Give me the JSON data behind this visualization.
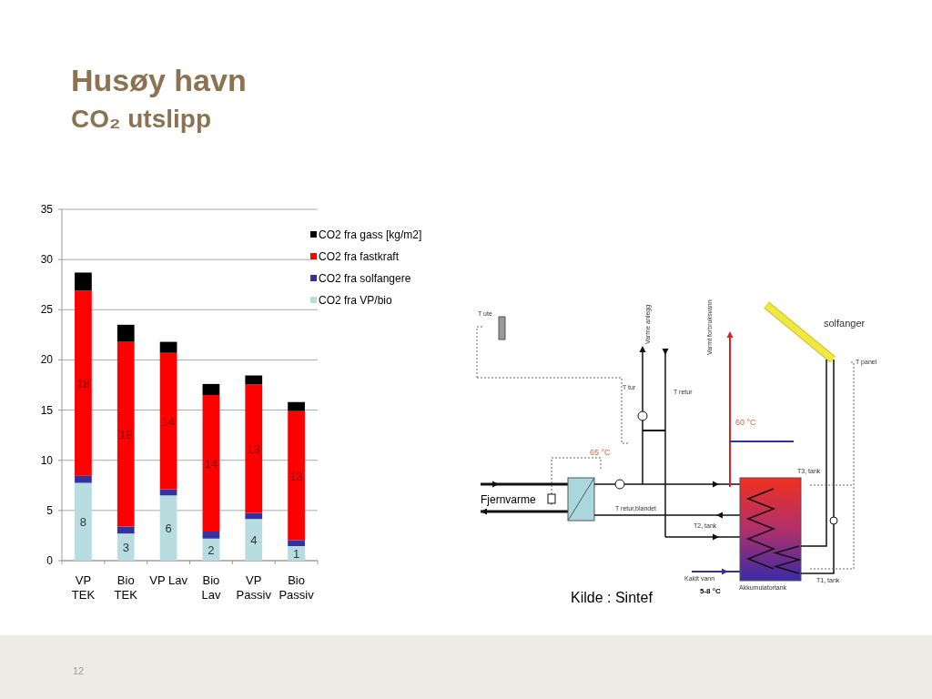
{
  "chart_data": {
    "type": "bar",
    "title": "Husøy havn",
    "subtitle": "CO₂ utslipp",
    "stacked": true,
    "grid": "y",
    "legend": "top right",
    "categories": [
      "VP TEK",
      "Bio TEK",
      "VP Lav",
      "Bio Lav",
      "VP Passiv",
      "Bio Passiv"
    ],
    "ylim": [
      0,
      35
    ],
    "yticks": [
      0,
      5,
      10,
      15,
      20,
      25,
      30,
      35
    ],
    "series": [
      {
        "name": "CO2 fra VP/bio",
        "color": "#b7dde0",
        "values": [
          7.75,
          2.7,
          6.5,
          2.2,
          4.15,
          1.45
        ],
        "value_labels": [
          "8",
          "3",
          "6",
          "2",
          "4",
          "1"
        ]
      },
      {
        "name": "CO2 fra solfangere",
        "color": "#3333a0",
        "values": [
          0.7,
          0.7,
          0.6,
          0.7,
          0.6,
          0.6
        ]
      },
      {
        "name": "CO2 fra fastkraft",
        "color": "#ff0000",
        "values": [
          18.45,
          18.4,
          13.6,
          13.6,
          12.8,
          12.85
        ],
        "value_labels": [
          "18",
          "18",
          "14",
          "14",
          "13",
          "13"
        ]
      },
      {
        "name": "CO2 fra gass [kg/m2]",
        "color": "#000000",
        "values": [
          1.8,
          1.7,
          1.1,
          1.1,
          0.9,
          0.9
        ]
      }
    ],
    "annotations": [
      "Kilde : Sintef",
      "12",
      "T ute",
      "Varme anlegg",
      "Varmt forbruksvann",
      "solfanger",
      "T tur",
      "T retur",
      "60 °C",
      "65 °C",
      "T panel",
      "T3, tank",
      "Fjernvarme",
      "T retur,blandet",
      "T2, tank",
      "Kaldt vann",
      "5-8 °C",
      "Akkumulatortank",
      "T1, tank"
    ]
  }
}
